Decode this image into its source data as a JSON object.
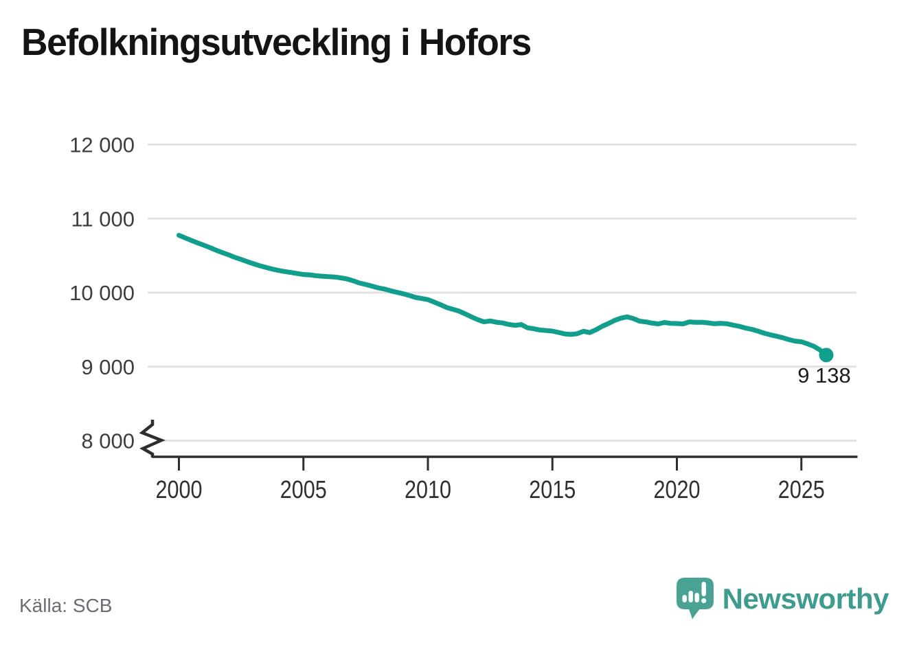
{
  "header": {
    "title": "Befolkningsutveckling i Hofors"
  },
  "footer": {
    "source": "Källa: SCB",
    "brand_name": "Newsworthy"
  },
  "colors": {
    "line": "#129e8d",
    "grid": "#e2e2e2",
    "axis": "#2e2e2e",
    "y_label": "#3e3e3e",
    "x_label": "#303030",
    "logo_icon": "#4aa294",
    "logo_text": "#3d9c8e"
  },
  "chart_data": {
    "type": "line",
    "title": "Befolkningsutveckling i Hofors",
    "source": "Källa: SCB",
    "grid": true,
    "legend": "none",
    "x_axis": {
      "start": 2000,
      "step": 0.25,
      "tick_values": [
        2000,
        2005,
        2010,
        2015,
        2020,
        2025
      ],
      "tick_labels": [
        "2000",
        "2005",
        "2010",
        "2015",
        "2020",
        "2025"
      ]
    },
    "y_axis": {
      "range": [
        8000,
        12300
      ],
      "broken_axis": true,
      "tick_values": [
        8000,
        9000,
        10000,
        11000,
        12000
      ],
      "tick_labels": [
        "8 000",
        "9 000",
        "10 000",
        "11 000",
        "12 000"
      ]
    },
    "values": [
      10775,
      10740,
      10705,
      10672,
      10640,
      10608,
      10572,
      10540,
      10510,
      10476,
      10448,
      10418,
      10390,
      10363,
      10340,
      10318,
      10300,
      10285,
      10272,
      10258,
      10245,
      10240,
      10228,
      10222,
      10215,
      10212,
      10200,
      10185,
      10160,
      10130,
      10110,
      10088,
      10065,
      10048,
      10025,
      10005,
      9985,
      9962,
      9935,
      9920,
      9905,
      9872,
      9838,
      9800,
      9775,
      9750,
      9712,
      9672,
      9635,
      9605,
      9618,
      9600,
      9590,
      9570,
      9558,
      9568,
      9525,
      9512,
      9495,
      9488,
      9480,
      9462,
      9442,
      9435,
      9445,
      9478,
      9460,
      9498,
      9545,
      9582,
      9625,
      9655,
      9672,
      9650,
      9615,
      9605,
      9588,
      9578,
      9596,
      9585,
      9582,
      9578,
      9605,
      9598,
      9600,
      9592,
      9580,
      9585,
      9580,
      9562,
      9545,
      9522,
      9504,
      9480,
      9452,
      9430,
      9412,
      9390,
      9365,
      9345,
      9336,
      9308,
      9275,
      9225,
      9138
    ],
    "end_value": 9138,
    "end_label": "9 138"
  }
}
